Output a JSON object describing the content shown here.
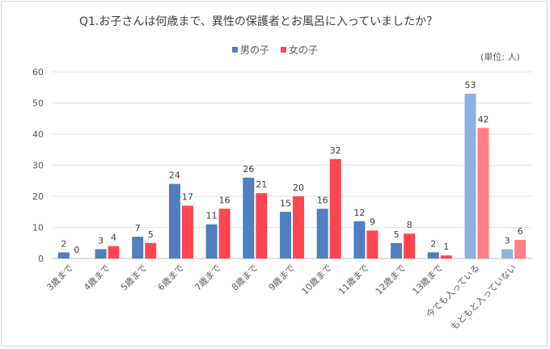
{
  "chart_data": {
    "type": "bar",
    "title": "Q1.お子さんは何歳まで、異性の保護者とお風呂に入っていましたか？",
    "unit_note": "(単位: 人)",
    "categories": [
      "3歳まで",
      "4歳まで",
      "5歳まで",
      "6歳まで",
      "7歳まで",
      "8歳まで",
      "9歳まで",
      "10歳まで",
      "11歳まで",
      "12歳まで",
      "13歳まで",
      "今でも入っている",
      "もともと入っていない"
    ],
    "series": [
      {
        "name": "男の子",
        "color": "#4f7fc0",
        "highlight_color": "#8eb1e2",
        "values": [
          2,
          3,
          7,
          24,
          11,
          26,
          15,
          16,
          12,
          5,
          2,
          53,
          3
        ]
      },
      {
        "name": "女の子",
        "color": "#ff4650",
        "highlight_color": "#ff7f86",
        "values": [
          0,
          4,
          5,
          17,
          16,
          21,
          20,
          32,
          9,
          8,
          1,
          42,
          6
        ]
      }
    ],
    "highlighted_categories": [
      "今でも入っている",
      "もともと入っていない"
    ],
    "ylim": [
      0,
      60
    ],
    "yticks": [
      0,
      10,
      20,
      30,
      40,
      50,
      60
    ],
    "grid": true,
    "legend": "top-center",
    "data_labels": true
  }
}
